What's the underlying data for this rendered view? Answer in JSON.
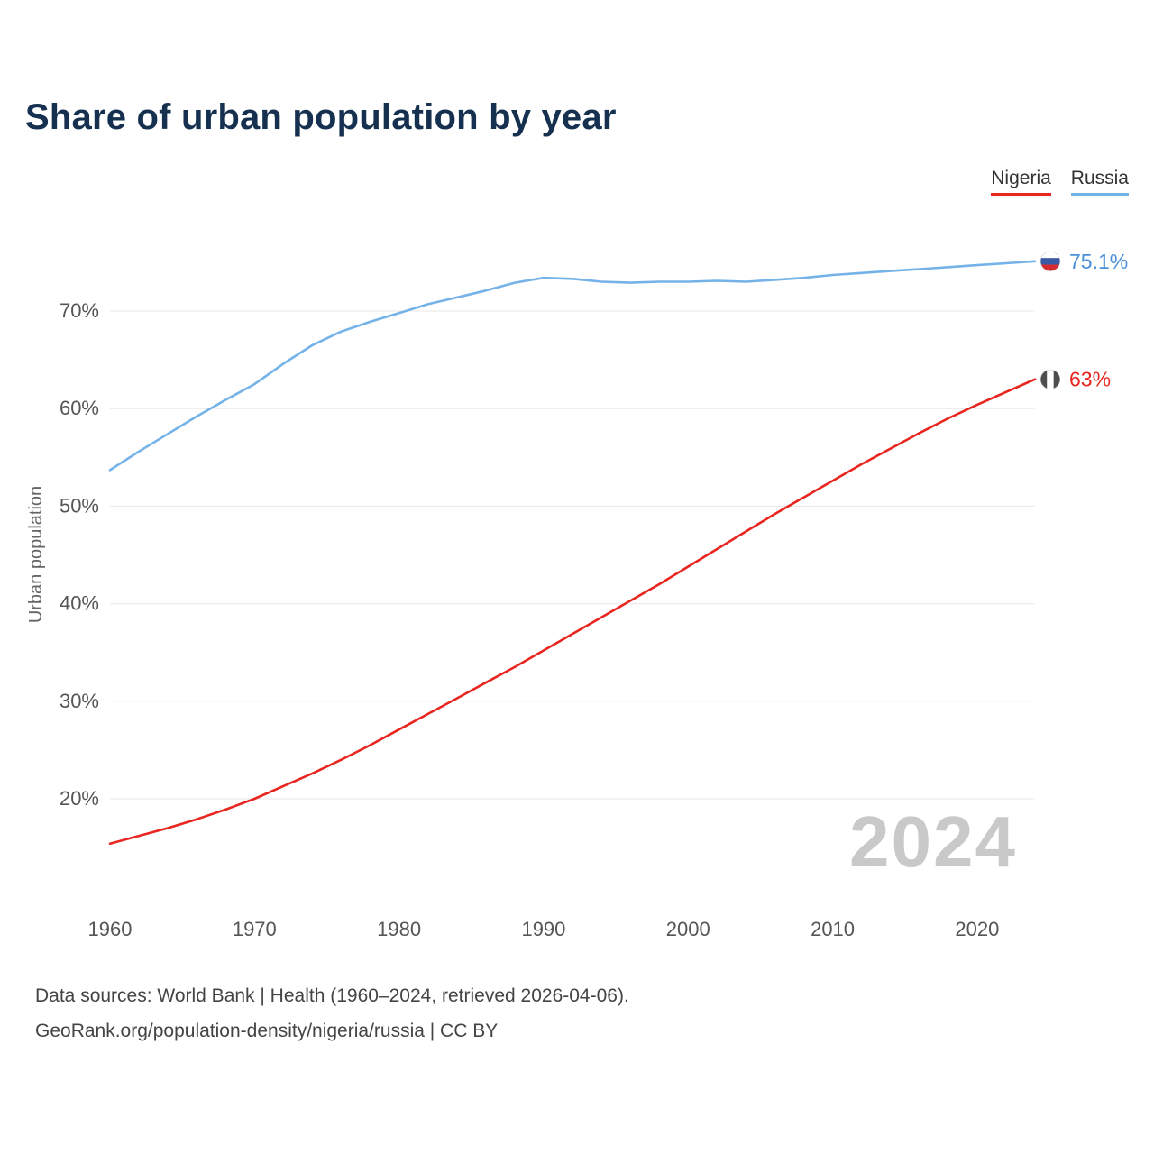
{
  "title": "Share of urban population by year",
  "legend": [
    {
      "label": "Nigeria",
      "color": "#e8251f"
    },
    {
      "label": "Russia",
      "color": "#74b2e8"
    }
  ],
  "watermark": "2024",
  "footer": {
    "line1": "Data sources: World Bank | Health (1960–2024, retrieved 2026-04-06).",
    "line2": "GeoRank.org/population-density/nigeria/russia | CC BY"
  },
  "end_labels": [
    {
      "series": "Russia",
      "text": "75.1%",
      "color": "#4a90d9",
      "flag": "russia-flag-icon"
    },
    {
      "series": "Nigeria",
      "text": "63%",
      "color": "#e8251f",
      "flag": "nigeria-flag-icon"
    }
  ],
  "chart_data": {
    "type": "line",
    "title": "Share of urban population by year",
    "xlabel": "",
    "ylabel": "Urban population",
    "x": [
      1960,
      1962,
      1964,
      1966,
      1968,
      1970,
      1972,
      1974,
      1976,
      1978,
      1980,
      1982,
      1984,
      1986,
      1988,
      1990,
      1992,
      1994,
      1996,
      1998,
      2000,
      2002,
      2004,
      2006,
      2008,
      2010,
      2012,
      2014,
      2016,
      2018,
      2020,
      2022,
      2024
    ],
    "series": [
      {
        "name": "Russia",
        "color": "#74b2e8",
        "values": [
          53.7,
          55.6,
          57.4,
          59.2,
          60.9,
          62.5,
          64.6,
          66.5,
          67.9,
          68.9,
          69.8,
          70.7,
          71.4,
          72.1,
          72.9,
          73.4,
          73.3,
          73.0,
          72.9,
          73.0,
          73.0,
          73.1,
          73.0,
          73.2,
          73.4,
          73.7,
          73.9,
          74.1,
          74.3,
          74.5,
          74.7,
          74.9,
          75.1
        ]
      },
      {
        "name": "Nigeria",
        "color": "#e8251f",
        "values": [
          15.4,
          16.2,
          17.0,
          17.9,
          18.9,
          20.0,
          21.3,
          22.6,
          24.0,
          25.5,
          27.1,
          28.7,
          30.3,
          31.9,
          33.5,
          35.2,
          36.9,
          38.6,
          40.3,
          42.0,
          43.8,
          45.6,
          47.4,
          49.2,
          50.9,
          52.6,
          54.3,
          55.9,
          57.5,
          59.0,
          60.4,
          61.7,
          63.0
        ]
      }
    ],
    "ylim": [
      13,
      78
    ],
    "yticks": [
      20,
      30,
      40,
      50,
      60,
      70
    ],
    "xticks": [
      1960,
      1970,
      1980,
      1990,
      2000,
      2010,
      2020
    ],
    "grid": true,
    "legend_position": "top-right"
  }
}
